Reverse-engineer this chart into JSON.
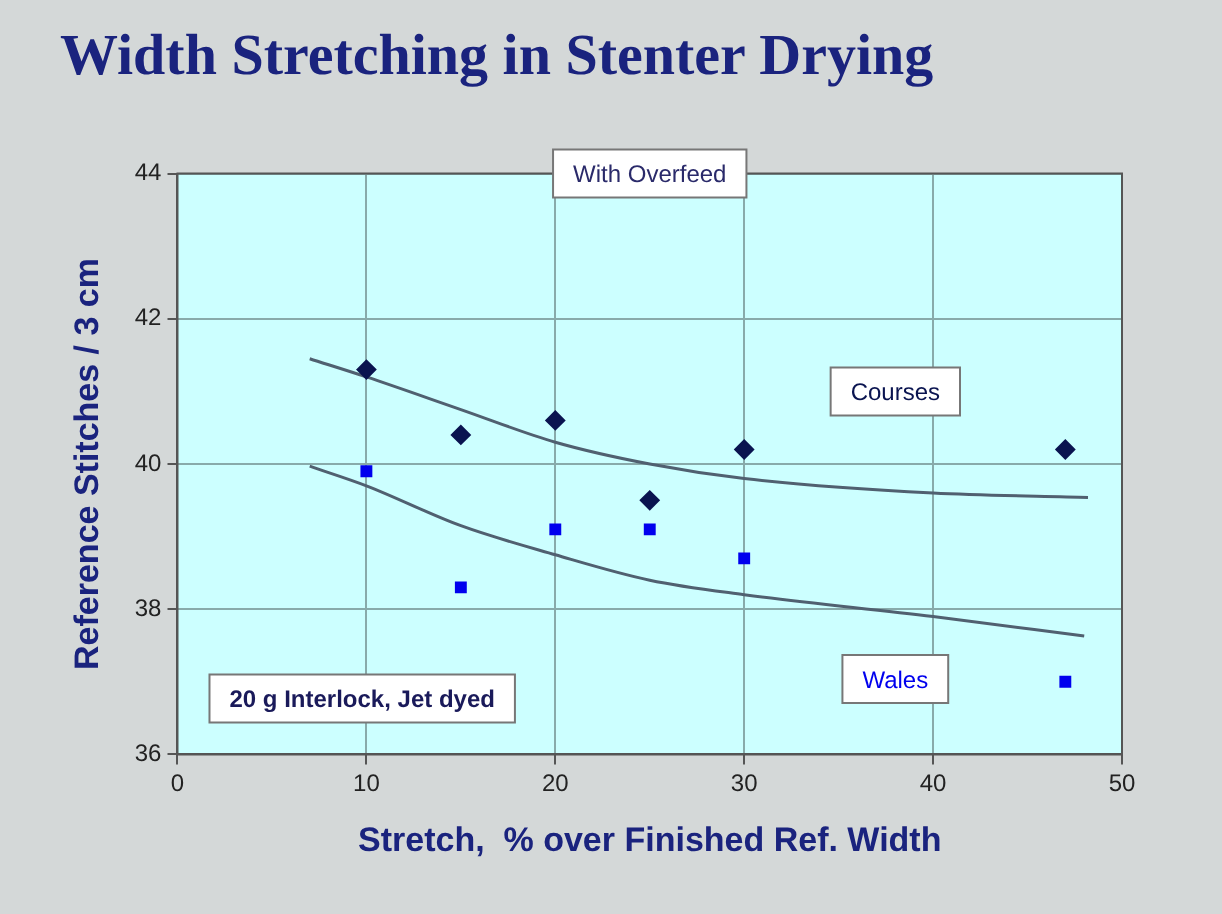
{
  "chart_data": {
    "type": "scatter",
    "title": "Width Stretching in Stenter Drying",
    "subtitle": "With Overfeed",
    "xlabel": "Stretch,  % over Finished Ref. Width",
    "ylabel": "Reference Stitches / 3 cm",
    "xlim": [
      0,
      50
    ],
    "xticks": [
      0,
      10,
      20,
      30,
      40,
      50
    ],
    "ylim": [
      36,
      44
    ],
    "yticks": [
      36,
      38,
      40,
      42,
      44
    ],
    "grid": true,
    "legend": false,
    "annotations": [
      "20 g Interlock, Jet dyed"
    ],
    "series": [
      {
        "name": "Courses",
        "type": "scatter",
        "marker": "diamond",
        "color": "#0a1450",
        "x": [
          10,
          15,
          20,
          25,
          30,
          47
        ],
        "values": [
          41.3,
          40.4,
          40.6,
          39.5,
          40.2,
          40.2
        ]
      },
      {
        "name": "Wales",
        "type": "scatter",
        "marker": "square",
        "color": "#0000ee",
        "x": [
          10,
          15,
          20,
          25,
          30,
          47
        ],
        "values": [
          39.9,
          38.3,
          39.1,
          39.1,
          38.7,
          37.0
        ]
      },
      {
        "type": "line",
        "marker": "none",
        "line_style": "solid",
        "color": "#506070",
        "x": [
          7,
          10,
          15,
          20,
          25,
          30,
          40,
          48.2
        ],
        "values": [
          41.45,
          41.2,
          40.75,
          40.3,
          40.0,
          39.8,
          39.6,
          39.54
        ]
      },
      {
        "type": "line",
        "marker": "none",
        "line_style": "solid",
        "color": "#506070",
        "x": [
          7,
          10,
          15,
          20,
          25,
          30,
          40,
          48
        ],
        "values": [
          39.97,
          39.7,
          39.15,
          38.75,
          38.4,
          38.2,
          37.9,
          37.63
        ]
      }
    ]
  }
}
